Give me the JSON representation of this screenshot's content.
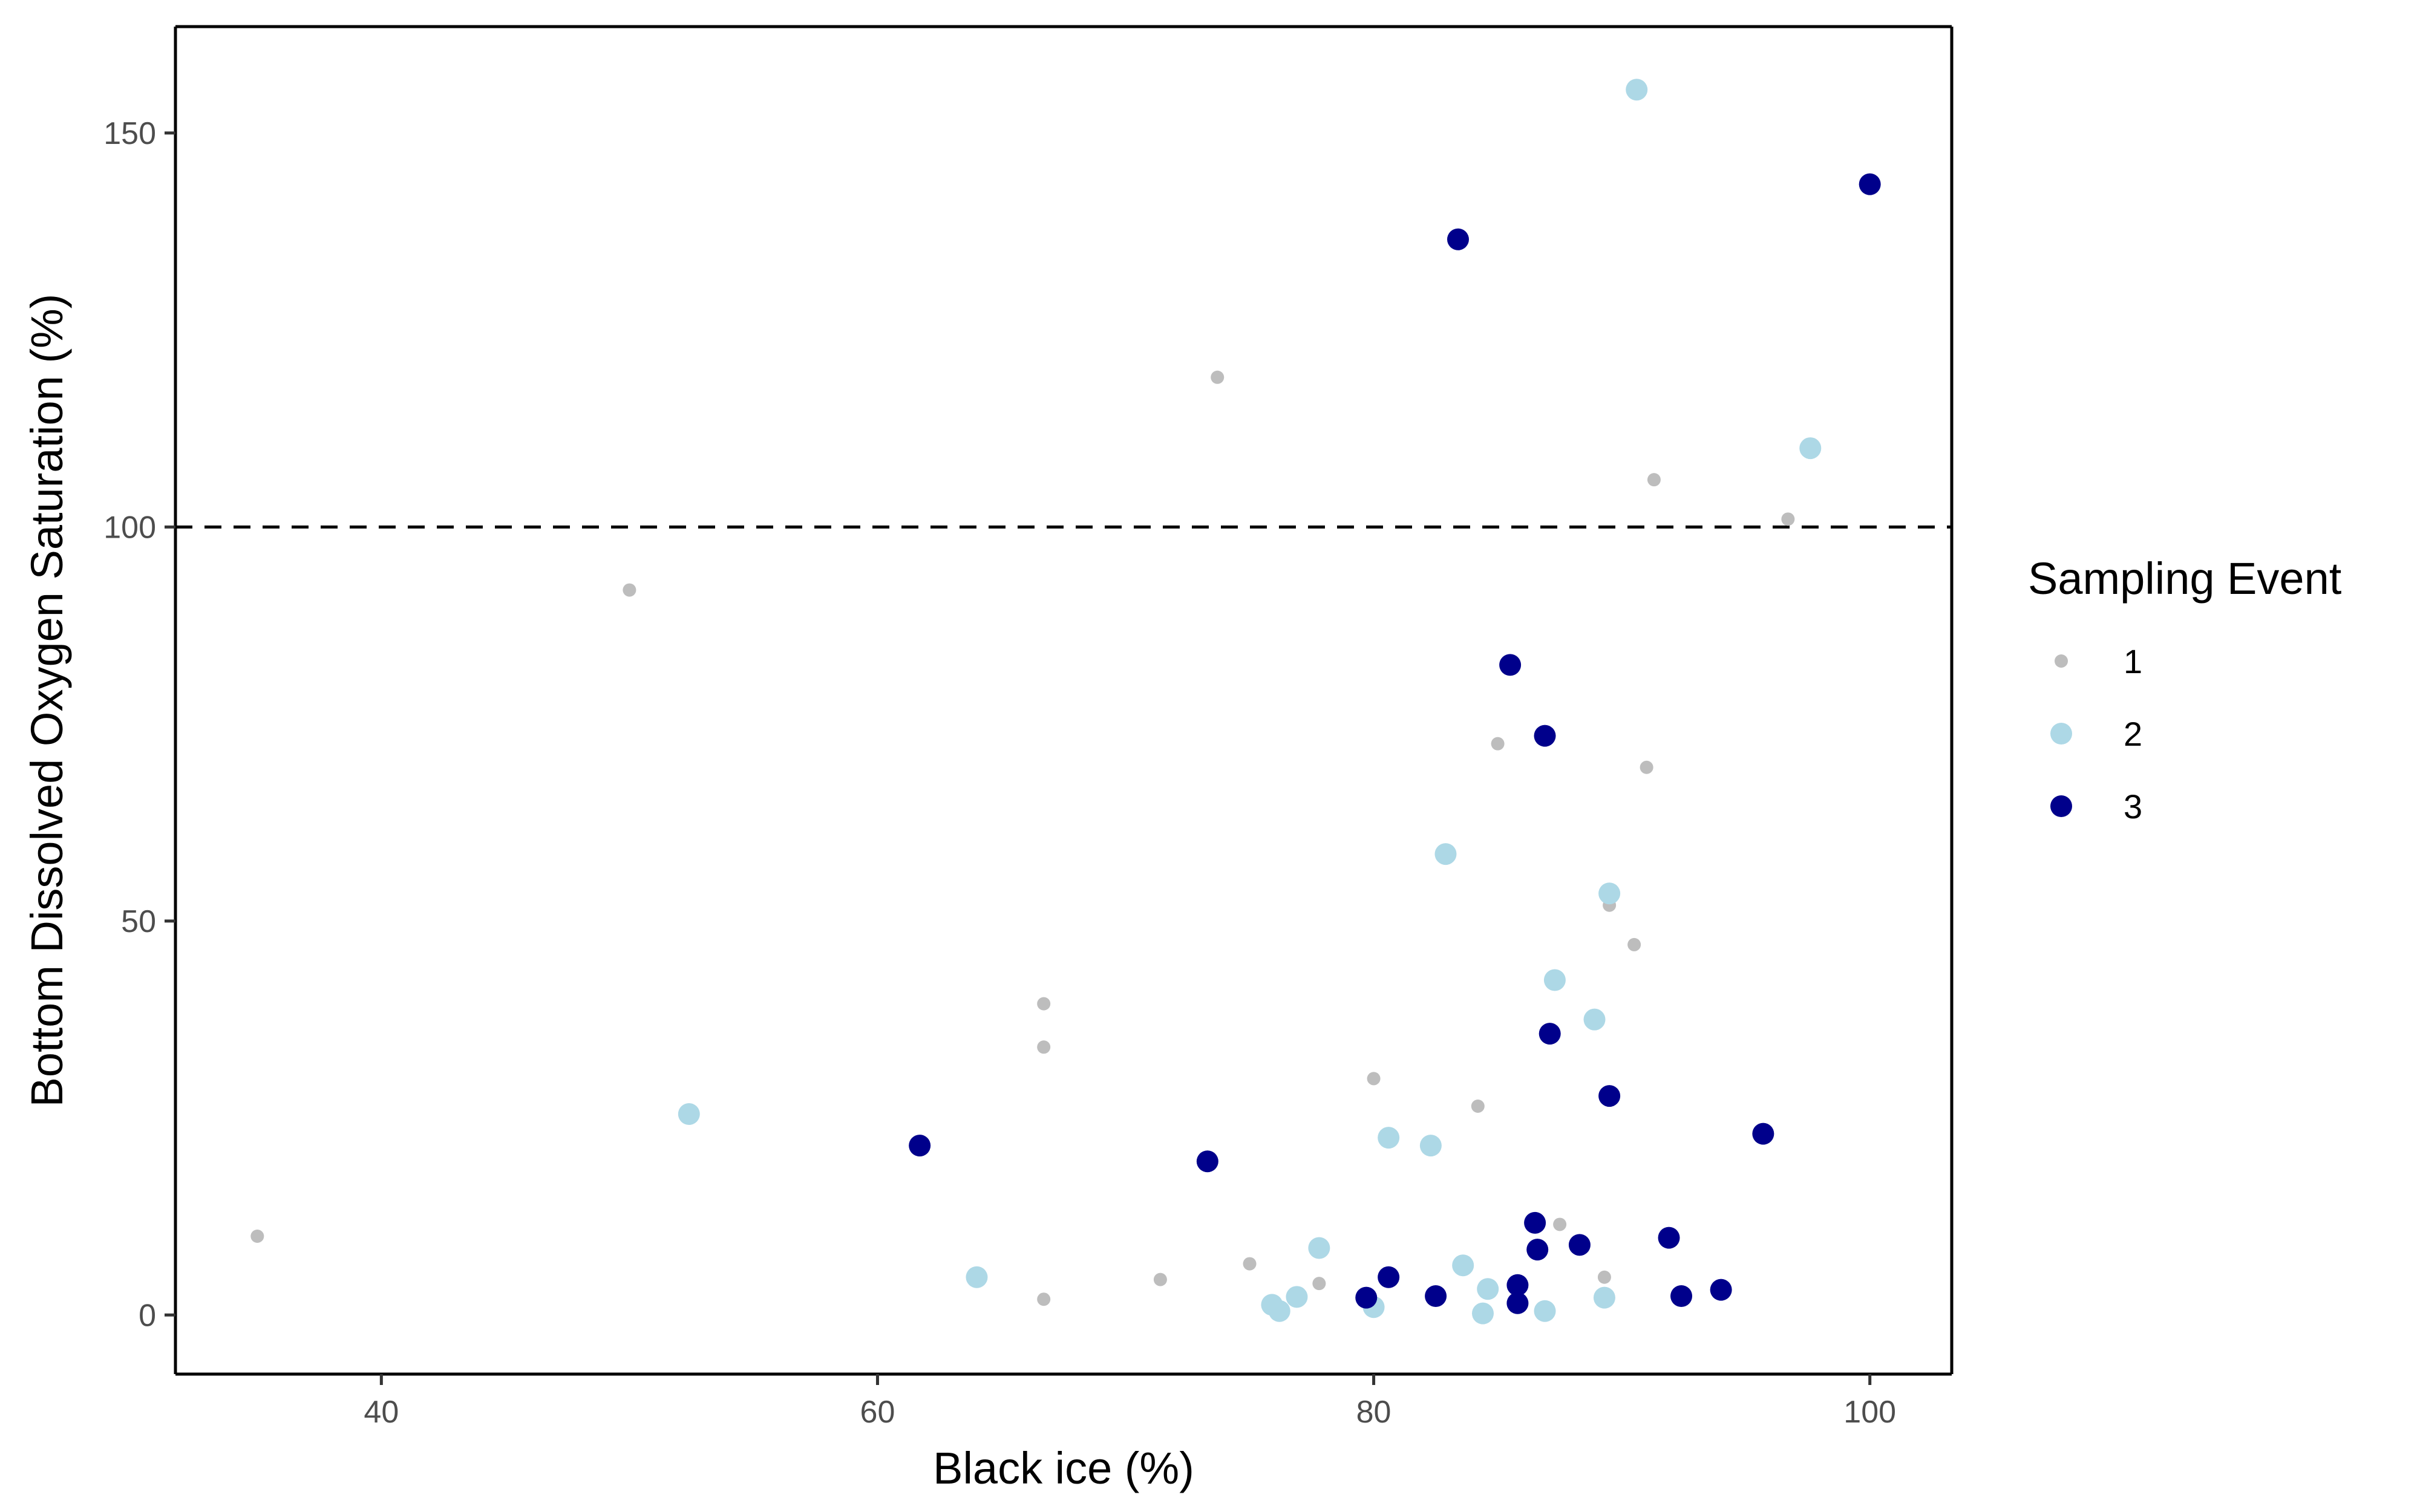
{
  "chart_data": {
    "type": "scatter",
    "xlabel": "Black ice (%)",
    "ylabel": "Bottom Dissolved Oxygen Saturation (%)",
    "xlim": [
      31.7,
      103.3
    ],
    "ylim": [
      -7.5,
      163.5
    ],
    "x_ticks": [
      40,
      60,
      80,
      100
    ],
    "y_ticks": [
      0,
      50,
      100,
      150
    ],
    "x_tick_labels": [
      "40",
      "60",
      "80",
      "100"
    ],
    "y_tick_labels": [
      "0",
      "50",
      "100",
      "150"
    ],
    "grid": false,
    "reference_line": {
      "y": 100,
      "style": "dashed",
      "color": "#000000"
    },
    "legend": {
      "title": "Sampling Event",
      "placement": "right"
    },
    "series": [
      {
        "name": "1",
        "color": "#bdbdbd",
        "point_size": "small",
        "points": [
          [
            35.0,
            10.0
          ],
          [
            50.0,
            92.0
          ],
          [
            66.7,
            39.5
          ],
          [
            66.7,
            34.0
          ],
          [
            66.7,
            2.0
          ],
          [
            71.4,
            4.5
          ],
          [
            73.7,
            119.0
          ],
          [
            75.0,
            6.5
          ],
          [
            77.8,
            4.0
          ],
          [
            80.0,
            30.0
          ],
          [
            84.2,
            26.5
          ],
          [
            85.0,
            72.5
          ],
          [
            87.5,
            11.5
          ],
          [
            89.3,
            4.8
          ],
          [
            89.5,
            52.0
          ],
          [
            90.5,
            47.0
          ],
          [
            91.0,
            69.5
          ],
          [
            91.3,
            106.0
          ],
          [
            96.7,
            101.0
          ]
        ]
      },
      {
        "name": "2",
        "color": "#add8e6",
        "point_size": "large",
        "points": [
          [
            52.4,
            25.5
          ],
          [
            64.0,
            4.8
          ],
          [
            75.9,
            1.3
          ],
          [
            76.2,
            0.5
          ],
          [
            76.9,
            2.3
          ],
          [
            77.8,
            8.5
          ],
          [
            80.0,
            1.0
          ],
          [
            80.6,
            22.5
          ],
          [
            82.3,
            21.5
          ],
          [
            82.9,
            58.5
          ],
          [
            83.6,
            6.3
          ],
          [
            84.4,
            0.2
          ],
          [
            84.6,
            3.3
          ],
          [
            86.9,
            0.5
          ],
          [
            87.3,
            42.5
          ],
          [
            88.9,
            37.5
          ],
          [
            89.3,
            2.2
          ],
          [
            89.5,
            53.5
          ],
          [
            90.6,
            155.5
          ],
          [
            97.6,
            110.0
          ]
        ]
      },
      {
        "name": "3",
        "color": "#00008b",
        "point_size": "large",
        "points": [
          [
            61.7,
            21.5
          ],
          [
            73.3,
            19.5
          ],
          [
            79.7,
            2.2
          ],
          [
            80.6,
            4.8
          ],
          [
            82.5,
            2.4
          ],
          [
            83.4,
            136.5
          ],
          [
            85.5,
            82.5
          ],
          [
            85.8,
            3.8
          ],
          [
            85.8,
            1.5
          ],
          [
            86.5,
            11.7
          ],
          [
            86.6,
            8.3
          ],
          [
            86.9,
            73.5
          ],
          [
            87.1,
            35.7
          ],
          [
            88.3,
            8.9
          ],
          [
            89.5,
            27.8
          ],
          [
            91.9,
            9.8
          ],
          [
            92.4,
            2.4
          ],
          [
            94.0,
            3.2
          ],
          [
            95.7,
            23.0
          ],
          [
            100.0,
            143.5
          ]
        ]
      }
    ]
  }
}
